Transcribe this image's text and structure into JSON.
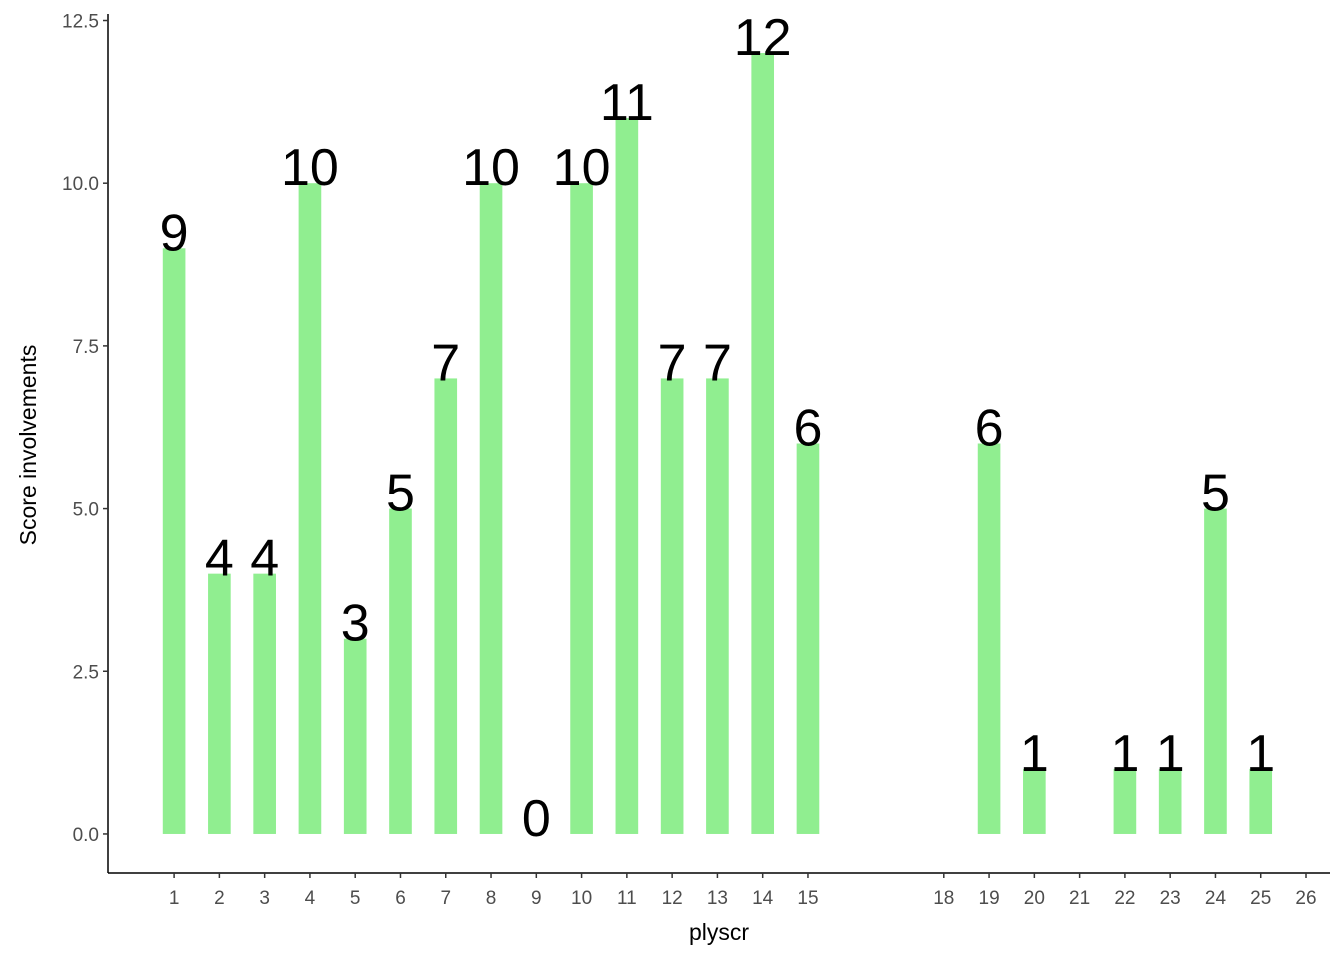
{
  "chart_data": {
    "type": "bar",
    "x_label": "plyscr",
    "y_label": "Score involvements",
    "x": [
      1,
      2,
      3,
      4,
      5,
      6,
      7,
      8,
      9,
      10,
      11,
      12,
      13,
      14,
      15,
      19,
      20,
      22,
      23,
      24,
      25
    ],
    "values": [
      9,
      4,
      4,
      10,
      3,
      5,
      7,
      10,
      0,
      10,
      11,
      7,
      7,
      12,
      6,
      6,
      1,
      1,
      1,
      5,
      1
    ],
    "color": "#90ee90",
    "xlim": [
      -0.46,
      26.53
    ],
    "xticks": [
      1,
      2,
      3,
      4,
      5,
      6,
      7,
      8,
      9,
      10,
      11,
      12,
      13,
      14,
      15,
      18,
      19,
      20,
      21,
      22,
      23,
      24,
      25,
      26
    ],
    "ylim": [
      -0.6,
      12.6
    ],
    "yticks": [
      {
        "value": 0,
        "label": "0.0"
      },
      {
        "value": 2.5,
        "label": "2.5"
      },
      {
        "value": 5,
        "label": "5.0"
      },
      {
        "value": 7.5,
        "label": "7.5"
      },
      {
        "value": 10,
        "label": "10.0"
      },
      {
        "value": 12.5,
        "label": "12.5"
      }
    ],
    "grid": false
  }
}
